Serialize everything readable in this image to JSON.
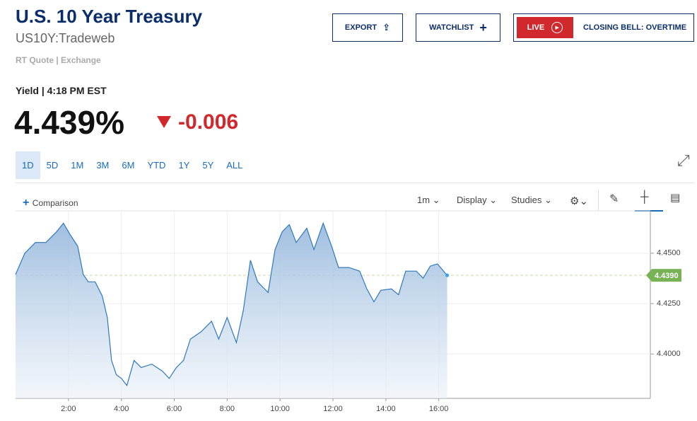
{
  "header": {
    "title": "U.S. 10 Year Treasury",
    "symbol": "US10Y:Tradeweb",
    "source": "RT Quote | Exchange"
  },
  "buttons": {
    "export": "EXPORT",
    "watchlist": "WATCHLIST",
    "live": "LIVE",
    "program": "CLOSING BELL: OVERTIME"
  },
  "quote": {
    "label": "Yield | 4:18 PM EST",
    "last": "4.439%",
    "change": "-0.006"
  },
  "ranges": [
    "1D",
    "5D",
    "1M",
    "3M",
    "6M",
    "YTD",
    "1Y",
    "5Y",
    "ALL"
  ],
  "active_range": 0,
  "toolbar": {
    "comparison": "Comparison",
    "interval": "1m",
    "display": "Display",
    "studies": "Studies"
  },
  "chart_data": {
    "type": "line",
    "x": [
      0,
      0.35,
      0.75,
      1.15,
      1.55,
      1.81,
      2.08,
      2.35,
      2.56,
      2.75,
      3.01,
      3.28,
      3.47,
      3.63,
      3.81,
      4.0,
      4.21,
      4.48,
      4.75,
      5.15,
      5.55,
      5.81,
      6.08,
      6.35,
      6.61,
      7.01,
      7.41,
      7.68,
      8.0,
      8.35,
      8.61,
      8.88,
      9.15,
      9.55,
      9.81,
      10.08,
      10.35,
      10.61,
      11.01,
      11.28,
      11.63,
      11.95,
      12.21,
      12.61,
      13.01,
      13.28,
      13.55,
      13.81,
      14.21,
      14.48,
      14.75,
      15.15,
      15.41,
      15.68,
      15.95,
      16.32
    ],
    "series": [
      {
        "name": "US10Y",
        "color": "#2f78b8",
        "values": [
          4.4394,
          4.45,
          4.4553,
          4.4553,
          4.4606,
          4.4649,
          4.4589,
          4.4535,
          4.4394,
          4.4358,
          4.4358,
          4.4287,
          4.4181,
          4.3968,
          4.3897,
          4.3879,
          4.3844,
          4.3968,
          4.3933,
          4.395,
          4.3915,
          4.3879,
          4.3933,
          4.3968,
          4.4074,
          4.411,
          4.4163,
          4.4074,
          4.4181,
          4.4057,
          4.4216,
          4.4465,
          4.4358,
          4.4305,
          4.4518,
          4.4606,
          4.4642,
          4.4553,
          4.4624,
          4.4518,
          4.4649,
          4.4535,
          4.4429,
          4.4429,
          4.4411,
          4.4323,
          4.4259,
          4.4316,
          4.4323,
          4.4294,
          4.4411,
          4.4411,
          4.4376,
          4.4436,
          4.4447,
          4.439
        ]
      }
    ],
    "last_value": {
      "value": 4.439,
      "label": "4.4390"
    },
    "xlim": [
      0,
      24
    ],
    "xticks": [
      {
        "value": 2,
        "label": "2:00"
      },
      {
        "value": 4,
        "label": "4:00"
      },
      {
        "value": 6,
        "label": "6:00"
      },
      {
        "value": 8,
        "label": "8:00"
      },
      {
        "value": 10,
        "label": "10:00"
      },
      {
        "value": 12,
        "label": "12:00"
      },
      {
        "value": 14,
        "label": "14:00"
      },
      {
        "value": 16,
        "label": "16:00"
      }
    ],
    "ylim": [
      4.378,
      4.471
    ],
    "yticks": [
      {
        "value": 4.45,
        "label": "4.4500"
      },
      {
        "value": 4.425,
        "label": "4.4250"
      },
      {
        "value": 4.4,
        "label": "4.4000"
      }
    ],
    "grid": true
  }
}
